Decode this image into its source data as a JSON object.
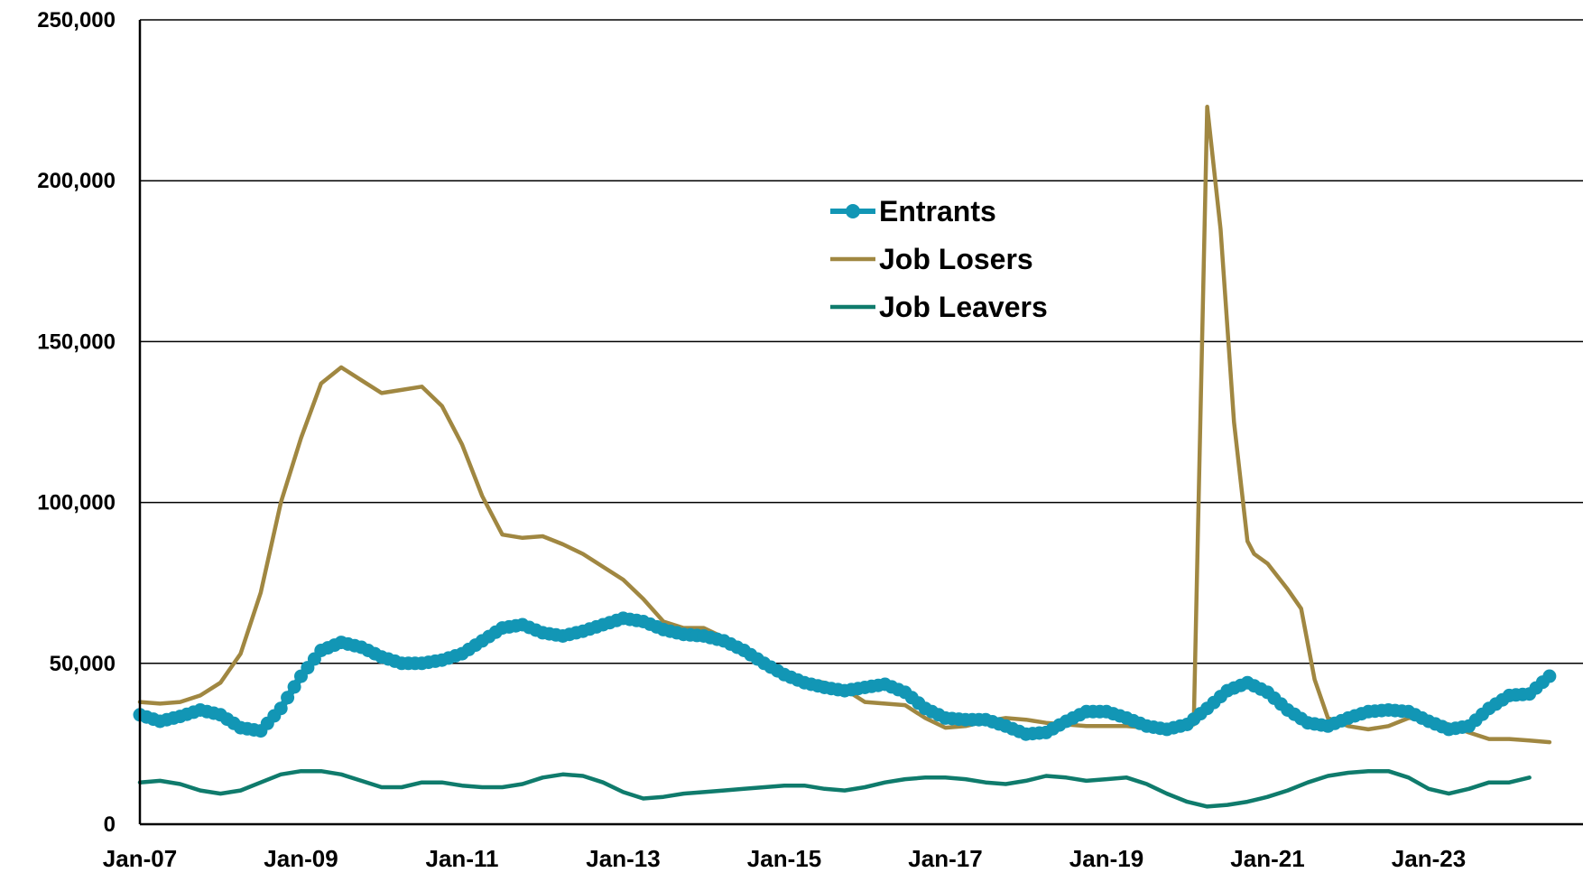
{
  "chart_data": {
    "type": "line",
    "title": "",
    "xlabel": "",
    "ylabel": "",
    "ylim": [
      0,
      250000
    ],
    "xlim": [
      "Jan-07",
      "Jun-25"
    ],
    "y_ticks": [
      "0",
      "50,000",
      "100,000",
      "150,000",
      "200,000",
      "250,000"
    ],
    "y_tick_values": [
      0,
      50000,
      100000,
      150000,
      200000,
      250000
    ],
    "x_ticks": [
      "Jan-07",
      "Jan-09",
      "Jan-11",
      "Jan-13",
      "Jan-15",
      "Jan-17",
      "Jan-19",
      "Jan-21",
      "Jan-23"
    ],
    "grid": "horizontal",
    "legend_position": "top-center",
    "series": [
      {
        "name": "Entrants",
        "color": "#1296b5",
        "marker": "circle",
        "points": [
          [
            "2007-01",
            34000
          ],
          [
            "2007-04",
            32000
          ],
          [
            "2007-07",
            33500
          ],
          [
            "2007-10",
            35500
          ],
          [
            "2008-01",
            34000
          ],
          [
            "2008-04",
            30000
          ],
          [
            "2008-07",
            29000
          ],
          [
            "2008-10",
            36000
          ],
          [
            "2009-01",
            46000
          ],
          [
            "2009-04",
            54000
          ],
          [
            "2009-07",
            56500
          ],
          [
            "2009-10",
            55000
          ],
          [
            "2010-01",
            52000
          ],
          [
            "2010-04",
            50000
          ],
          [
            "2010-07",
            50000
          ],
          [
            "2010-10",
            51000
          ],
          [
            "2011-01",
            53000
          ],
          [
            "2011-04",
            57000
          ],
          [
            "2011-07",
            61000
          ],
          [
            "2011-10",
            62000
          ],
          [
            "2012-01",
            59500
          ],
          [
            "2012-04",
            58500
          ],
          [
            "2012-07",
            60000
          ],
          [
            "2012-10",
            62000
          ],
          [
            "2013-01",
            64000
          ],
          [
            "2013-04",
            63000
          ],
          [
            "2013-07",
            60500
          ],
          [
            "2013-10",
            59000
          ],
          [
            "2014-01",
            58500
          ],
          [
            "2014-04",
            57000
          ],
          [
            "2014-07",
            54000
          ],
          [
            "2014-10",
            50000
          ],
          [
            "2015-01",
            46500
          ],
          [
            "2015-04",
            44000
          ],
          [
            "2015-07",
            42500
          ],
          [
            "2015-10",
            41500
          ],
          [
            "2016-01",
            42500
          ],
          [
            "2016-04",
            43500
          ],
          [
            "2016-07",
            41000
          ],
          [
            "2016-10",
            36000
          ],
          [
            "2017-01",
            33000
          ],
          [
            "2017-04",
            32500
          ],
          [
            "2017-07",
            32500
          ],
          [
            "2017-10",
            30500
          ],
          [
            "2018-01",
            28000
          ],
          [
            "2018-04",
            28500
          ],
          [
            "2018-07",
            32000
          ],
          [
            "2018-10",
            35000
          ],
          [
            "2019-01",
            35000
          ],
          [
            "2019-04",
            33000
          ],
          [
            "2019-07",
            30500
          ],
          [
            "2019-10",
            29500
          ],
          [
            "2020-01",
            31000
          ],
          [
            "2020-04",
            36000
          ],
          [
            "2020-07",
            41500
          ],
          [
            "2020-10",
            44000
          ],
          [
            "2021-01",
            41000
          ],
          [
            "2021-04",
            35500
          ],
          [
            "2021-07",
            31500
          ],
          [
            "2021-10",
            30500
          ],
          [
            "2022-01",
            33000
          ],
          [
            "2022-04",
            35000
          ],
          [
            "2022-07",
            35500
          ],
          [
            "2022-10",
            35000
          ],
          [
            "2023-01",
            32000
          ],
          [
            "2023-04",
            29500
          ],
          [
            "2023-07",
            30500
          ],
          [
            "2023-10",
            36000
          ],
          [
            "2024-01",
            40000
          ],
          [
            "2024-04",
            40500
          ],
          [
            "2024-07",
            46000
          ]
        ]
      },
      {
        "name": "Job Losers",
        "color": "#a08741",
        "marker": "none",
        "points": [
          [
            "2007-01",
            38000
          ],
          [
            "2007-04",
            37500
          ],
          [
            "2007-07",
            38000
          ],
          [
            "2007-10",
            40000
          ],
          [
            "2008-01",
            44000
          ],
          [
            "2008-04",
            53000
          ],
          [
            "2008-07",
            72000
          ],
          [
            "2008-10",
            100000
          ],
          [
            "2009-01",
            120000
          ],
          [
            "2009-04",
            137000
          ],
          [
            "2009-07",
            142000
          ],
          [
            "2009-10",
            138000
          ],
          [
            "2010-01",
            134000
          ],
          [
            "2010-04",
            135000
          ],
          [
            "2010-07",
            136000
          ],
          [
            "2010-10",
            130000
          ],
          [
            "2011-01",
            118000
          ],
          [
            "2011-04",
            102000
          ],
          [
            "2011-07",
            90000
          ],
          [
            "2011-10",
            89000
          ],
          [
            "2012-01",
            89500
          ],
          [
            "2012-04",
            87000
          ],
          [
            "2012-07",
            84000
          ],
          [
            "2012-10",
            80000
          ],
          [
            "2013-01",
            76000
          ],
          [
            "2013-04",
            70000
          ],
          [
            "2013-07",
            63000
          ],
          [
            "2013-10",
            61000
          ],
          [
            "2014-01",
            61000
          ],
          [
            "2014-04",
            58000
          ],
          [
            "2014-07",
            53000
          ],
          [
            "2014-10",
            49000
          ],
          [
            "2015-01",
            46000
          ],
          [
            "2015-04",
            45000
          ],
          [
            "2015-07",
            44000
          ],
          [
            "2015-10",
            42000
          ],
          [
            "2016-01",
            38000
          ],
          [
            "2016-04",
            37500
          ],
          [
            "2016-07",
            37000
          ],
          [
            "2016-10",
            33000
          ],
          [
            "2017-01",
            30000
          ],
          [
            "2017-04",
            30500
          ],
          [
            "2017-07",
            32000
          ],
          [
            "2017-10",
            33000
          ],
          [
            "2018-01",
            32500
          ],
          [
            "2018-04",
            31500
          ],
          [
            "2018-07",
            31000
          ],
          [
            "2018-10",
            30500
          ],
          [
            "2019-01",
            30500
          ],
          [
            "2019-04",
            30500
          ],
          [
            "2019-07",
            30000
          ],
          [
            "2019-10",
            30000
          ],
          [
            "2020-01",
            30500
          ],
          [
            "2020-02",
            31000
          ],
          [
            "2020-04",
            223000
          ],
          [
            "2020-06",
            185000
          ],
          [
            "2020-08",
            125000
          ],
          [
            "2020-10",
            88000
          ],
          [
            "2020-11",
            84000
          ],
          [
            "2021-01",
            81000
          ],
          [
            "2021-04",
            73000
          ],
          [
            "2021-06",
            67000
          ],
          [
            "2021-08",
            45000
          ],
          [
            "2021-10",
            33000
          ],
          [
            "2022-01",
            30500
          ],
          [
            "2022-04",
            29500
          ],
          [
            "2022-07",
            30500
          ],
          [
            "2022-10",
            33000
          ],
          [
            "2023-01",
            33000
          ],
          [
            "2023-04",
            31000
          ],
          [
            "2023-07",
            28500
          ],
          [
            "2023-10",
            26500
          ],
          [
            "2024-01",
            26500
          ],
          [
            "2024-04",
            26000
          ],
          [
            "2024-07",
            25500
          ]
        ]
      },
      {
        "name": "Job Leavers",
        "color": "#0f7b6c",
        "marker": "none",
        "points": [
          [
            "2007-01",
            13000
          ],
          [
            "2007-04",
            13500
          ],
          [
            "2007-07",
            12500
          ],
          [
            "2007-10",
            10500
          ],
          [
            "2008-01",
            9500
          ],
          [
            "2008-04",
            10500
          ],
          [
            "2008-07",
            13000
          ],
          [
            "2008-10",
            15500
          ],
          [
            "2009-01",
            16500
          ],
          [
            "2009-04",
            16500
          ],
          [
            "2009-07",
            15500
          ],
          [
            "2009-10",
            13500
          ],
          [
            "2010-01",
            11500
          ],
          [
            "2010-04",
            11500
          ],
          [
            "2010-07",
            13000
          ],
          [
            "2010-10",
            13000
          ],
          [
            "2011-01",
            12000
          ],
          [
            "2011-04",
            11500
          ],
          [
            "2011-07",
            11500
          ],
          [
            "2011-10",
            12500
          ],
          [
            "2012-01",
            14500
          ],
          [
            "2012-04",
            15500
          ],
          [
            "2012-07",
            15000
          ],
          [
            "2012-10",
            13000
          ],
          [
            "2013-01",
            10000
          ],
          [
            "2013-04",
            8000
          ],
          [
            "2013-07",
            8500
          ],
          [
            "2013-10",
            9500
          ],
          [
            "2014-01",
            10000
          ],
          [
            "2014-04",
            10500
          ],
          [
            "2014-07",
            11000
          ],
          [
            "2014-10",
            11500
          ],
          [
            "2015-01",
            12000
          ],
          [
            "2015-04",
            12000
          ],
          [
            "2015-07",
            11000
          ],
          [
            "2015-10",
            10500
          ],
          [
            "2016-01",
            11500
          ],
          [
            "2016-04",
            13000
          ],
          [
            "2016-07",
            14000
          ],
          [
            "2016-10",
            14500
          ],
          [
            "2017-01",
            14500
          ],
          [
            "2017-04",
            14000
          ],
          [
            "2017-07",
            13000
          ],
          [
            "2017-10",
            12500
          ],
          [
            "2018-01",
            13500
          ],
          [
            "2018-04",
            15000
          ],
          [
            "2018-07",
            14500
          ],
          [
            "2018-10",
            13500
          ],
          [
            "2019-01",
            14000
          ],
          [
            "2019-04",
            14500
          ],
          [
            "2019-07",
            12500
          ],
          [
            "2019-10",
            9500
          ],
          [
            "2020-01",
            7000
          ],
          [
            "2020-04",
            5500
          ],
          [
            "2020-07",
            6000
          ],
          [
            "2020-10",
            7000
          ],
          [
            "2021-01",
            8500
          ],
          [
            "2021-04",
            10500
          ],
          [
            "2021-07",
            13000
          ],
          [
            "2021-10",
            15000
          ],
          [
            "2022-01",
            16000
          ],
          [
            "2022-04",
            16500
          ],
          [
            "2022-07",
            16500
          ],
          [
            "2022-10",
            14500
          ],
          [
            "2023-01",
            11000
          ],
          [
            "2023-04",
            9500
          ],
          [
            "2023-07",
            11000
          ],
          [
            "2023-10",
            13000
          ],
          [
            "2024-01",
            13000
          ],
          [
            "2024-04",
            14500
          ]
        ]
      }
    ]
  }
}
